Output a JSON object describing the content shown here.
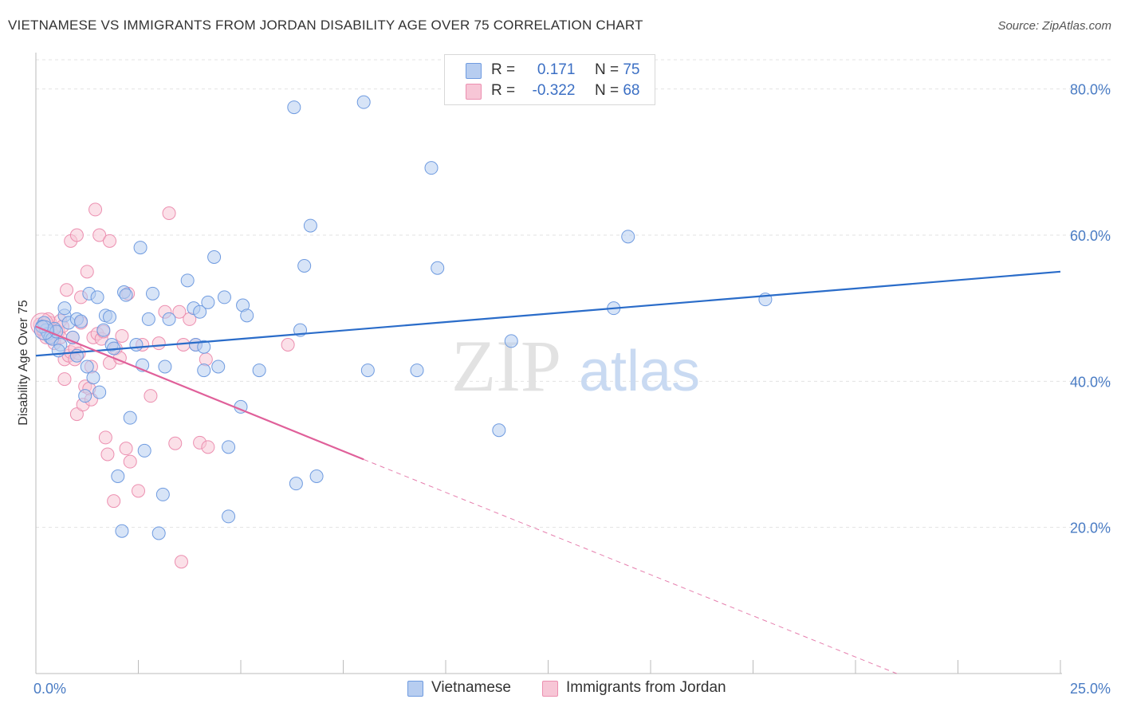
{
  "header": {
    "title": "VIETNAMESE VS IMMIGRANTS FROM JORDAN DISABILITY AGE OVER 75 CORRELATION CHART",
    "source": "Source: ZipAtlas.com"
  },
  "watermark": {
    "zip": "ZIP",
    "atlas": "atlas"
  },
  "legend": {
    "rows": [
      {
        "r_label": "R =",
        "r_value": "0.171",
        "n_label": "N =",
        "n_value": "75"
      },
      {
        "r_label": "R =",
        "r_value": "-0.322",
        "n_label": "N =",
        "n_value": "68"
      }
    ]
  },
  "bottom_legend": [
    {
      "label": "Vietnamese"
    },
    {
      "label": "Immigrants from Jordan"
    }
  ],
  "chart_data": {
    "type": "scatter",
    "title": "VIETNAMESE VS IMMIGRANTS FROM JORDAN DISABILITY AGE OVER 75 CORRELATION CHART",
    "xlabel": "",
    "ylabel": "Disability Age Over 75",
    "xlim": [
      0,
      25
    ],
    "ylim": [
      0,
      84
    ],
    "y_ticks": [
      20,
      40,
      60,
      80
    ],
    "y_tick_labels": [
      "20.0%",
      "40.0%",
      "60.0%",
      "80.0%"
    ],
    "x_tick_labels": [
      "0.0%",
      "25.0%"
    ],
    "grid": true,
    "legend_position": "top-center",
    "colors": {
      "vietnamese_fill": "#b7cdf0",
      "vietnamese_stroke": "#6f9be0",
      "vietnamese_line": "#2a6cc9",
      "jordan_fill": "#f7c6d6",
      "jordan_stroke": "#ec8fb0",
      "jordan_line": "#e0609a"
    },
    "series": [
      {
        "name": "Vietnamese",
        "r": 0.171,
        "n": 75,
        "trend": {
          "x0": 0,
          "y0": 43.5,
          "x1": 25,
          "y1": 55.0
        },
        "points": [
          [
            0.2,
            48.0
          ],
          [
            0.25,
            47.0
          ],
          [
            0.3,
            46.5
          ],
          [
            0.35,
            46.0
          ],
          [
            0.4,
            45.8
          ],
          [
            0.45,
            47.2
          ],
          [
            0.5,
            46.8
          ],
          [
            0.6,
            45.0
          ],
          [
            0.7,
            49.0
          ],
          [
            0.7,
            50.0
          ],
          [
            0.8,
            48.0
          ],
          [
            0.9,
            46.0
          ],
          [
            1.0,
            48.5
          ],
          [
            1.1,
            48.2
          ],
          [
            1.2,
            38.0
          ],
          [
            1.25,
            42.0
          ],
          [
            1.3,
            52.0
          ],
          [
            1.4,
            40.5
          ],
          [
            1.5,
            51.5
          ],
          [
            1.55,
            38.5
          ],
          [
            1.65,
            47.0
          ],
          [
            1.7,
            49.0
          ],
          [
            1.8,
            48.8
          ],
          [
            1.85,
            45.0
          ],
          [
            1.9,
            44.5
          ],
          [
            2.0,
            27.0
          ],
          [
            2.1,
            19.5
          ],
          [
            2.15,
            52.2
          ],
          [
            2.2,
            51.8
          ],
          [
            2.3,
            35.0
          ],
          [
            2.45,
            45.0
          ],
          [
            2.55,
            58.3
          ],
          [
            2.6,
            42.2
          ],
          [
            2.65,
            30.5
          ],
          [
            2.75,
            48.5
          ],
          [
            2.85,
            52.0
          ],
          [
            3.1,
            24.5
          ],
          [
            3.0,
            19.2
          ],
          [
            3.15,
            42.0
          ],
          [
            3.25,
            48.5
          ],
          [
            4.7,
            21.5
          ],
          [
            3.7,
            53.8
          ],
          [
            3.85,
            50.0
          ],
          [
            3.9,
            45.0
          ],
          [
            4.0,
            49.5
          ],
          [
            4.1,
            44.7
          ],
          [
            4.1,
            41.5
          ],
          [
            4.2,
            50.8
          ],
          [
            4.35,
            57.0
          ],
          [
            4.45,
            42.0
          ],
          [
            4.6,
            51.5
          ],
          [
            4.7,
            31.0
          ],
          [
            5.0,
            36.5
          ],
          [
            5.05,
            50.4
          ],
          [
            5.15,
            49.0
          ],
          [
            5.45,
            41.5
          ],
          [
            6.3,
            77.5
          ],
          [
            6.35,
            26.0
          ],
          [
            6.45,
            47.0
          ],
          [
            6.55,
            55.8
          ],
          [
            6.7,
            61.3
          ],
          [
            6.85,
            27.0
          ],
          [
            8.0,
            78.2
          ],
          [
            8.1,
            41.5
          ],
          [
            9.3,
            41.5
          ],
          [
            9.65,
            69.2
          ],
          [
            9.8,
            55.5
          ],
          [
            11.3,
            33.3
          ],
          [
            11.6,
            45.5
          ],
          [
            14.1,
            50.0
          ],
          [
            14.45,
            59.8
          ],
          [
            17.8,
            51.2
          ],
          [
            0.15,
            47.5
          ],
          [
            0.55,
            44.2
          ],
          [
            1.0,
            43.5
          ]
        ]
      },
      {
        "name": "Immigrants from Jordan",
        "r": -0.322,
        "n": 68,
        "trend": {
          "x0": 0,
          "y0": 47.5,
          "x1": 8.0,
          "y1": 29.3
        },
        "trend_dashed": {
          "x0": 8.0,
          "y0": 29.3,
          "x1": 25.0,
          "y1": -9.0
        },
        "points": [
          [
            0.1,
            47.8
          ],
          [
            0.15,
            47.2
          ],
          [
            0.2,
            46.5
          ],
          [
            0.25,
            46.0
          ],
          [
            0.3,
            47.5
          ],
          [
            0.35,
            48.0
          ],
          [
            0.4,
            46.3
          ],
          [
            0.45,
            45.8
          ],
          [
            0.5,
            47.0
          ],
          [
            0.55,
            46.8
          ],
          [
            0.6,
            48.3
          ],
          [
            0.65,
            47.5
          ],
          [
            0.7,
            43.0
          ],
          [
            0.7,
            40.3
          ],
          [
            0.75,
            52.5
          ],
          [
            0.8,
            43.5
          ],
          [
            0.85,
            44.0
          ],
          [
            0.85,
            59.2
          ],
          [
            0.9,
            46.0
          ],
          [
            0.95,
            44.5
          ],
          [
            1.0,
            60.0
          ],
          [
            1.0,
            35.5
          ],
          [
            1.05,
            43.8
          ],
          [
            1.1,
            51.5
          ],
          [
            1.1,
            48.0
          ],
          [
            1.15,
            36.8
          ],
          [
            1.2,
            39.3
          ],
          [
            1.25,
            55.0
          ],
          [
            1.3,
            39.0
          ],
          [
            1.35,
            37.5
          ],
          [
            1.35,
            42.0
          ],
          [
            1.4,
            46.0
          ],
          [
            1.45,
            63.5
          ],
          [
            1.5,
            46.5
          ],
          [
            1.55,
            60.0
          ],
          [
            1.6,
            45.8
          ],
          [
            1.7,
            32.3
          ],
          [
            1.75,
            30.0
          ],
          [
            1.8,
            42.5
          ],
          [
            1.8,
            59.2
          ],
          [
            1.9,
            23.6
          ],
          [
            1.95,
            44.5
          ],
          [
            2.1,
            46.2
          ],
          [
            2.2,
            30.8
          ],
          [
            2.25,
            52.0
          ],
          [
            2.3,
            29.0
          ],
          [
            2.5,
            25.0
          ],
          [
            2.6,
            45.0
          ],
          [
            2.8,
            38.0
          ],
          [
            3.0,
            45.2
          ],
          [
            3.15,
            49.5
          ],
          [
            3.25,
            63.0
          ],
          [
            3.4,
            31.5
          ],
          [
            3.5,
            49.5
          ],
          [
            3.6,
            45.0
          ],
          [
            3.9,
            45.0
          ],
          [
            4.0,
            31.6
          ],
          [
            4.15,
            43.0
          ],
          [
            4.2,
            31.0
          ],
          [
            3.55,
            15.3
          ],
          [
            6.15,
            45.0
          ],
          [
            0.45,
            45.2
          ],
          [
            0.95,
            43.0
          ],
          [
            1.65,
            46.8
          ],
          [
            2.05,
            43.2
          ],
          [
            0.3,
            48.5
          ],
          [
            0.6,
            46.0
          ],
          [
            3.75,
            48.5
          ]
        ]
      }
    ]
  }
}
